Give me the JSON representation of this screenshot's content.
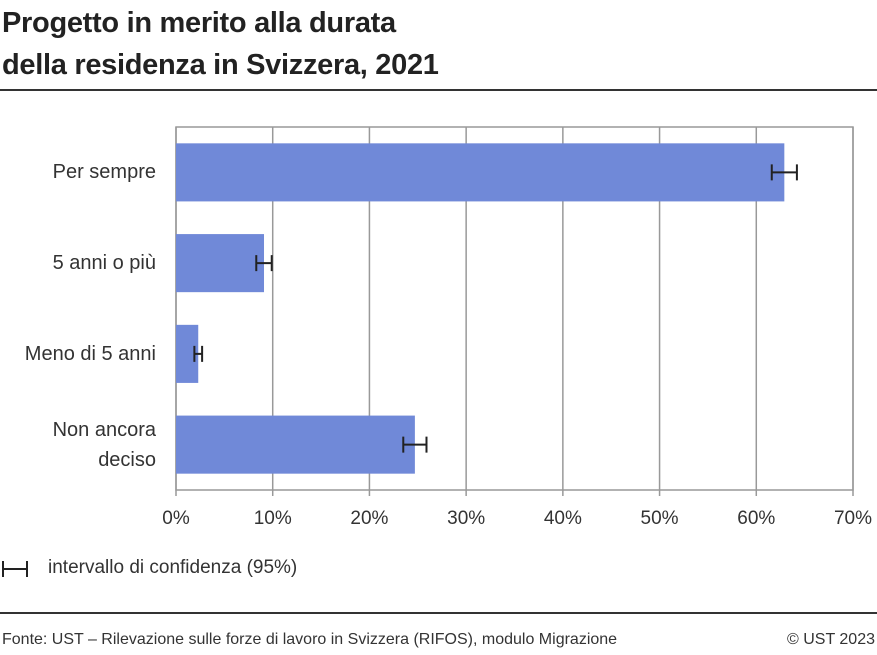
{
  "title": [
    "Progetto in merito alla durata",
    "della residenza in Svizzera, 2021"
  ],
  "chart_data": {
    "type": "bar",
    "orientation": "horizontal",
    "categories": [
      "Per sempre",
      "5 anni o più",
      "Meno di 5 anni",
      "Non ancora deciso"
    ],
    "values": [
      62.9,
      9.1,
      2.3,
      24.7
    ],
    "errors": [
      1.3,
      0.8,
      0.4,
      1.2
    ],
    "color": "#7089d8",
    "xlim": [
      0,
      70
    ],
    "xticks": [
      {
        "value": 0,
        "label": "0%"
      },
      {
        "value": 10,
        "label": "10%"
      },
      {
        "value": 20,
        "label": "20%"
      },
      {
        "value": 30,
        "label": "30%"
      },
      {
        "value": 40,
        "label": "40%"
      },
      {
        "value": 50,
        "label": "50%"
      },
      {
        "value": 60,
        "label": "60%"
      },
      {
        "value": 70,
        "label": "70%"
      }
    ],
    "grid": true,
    "error_legend": "intervallo di confidenza (95%)"
  },
  "footer": {
    "source": "Fonte: UST – Rilevazione sulle forze di lavoro in Svizzera (RIFOS), modulo Migrazione",
    "copyright": "© UST 2023"
  }
}
